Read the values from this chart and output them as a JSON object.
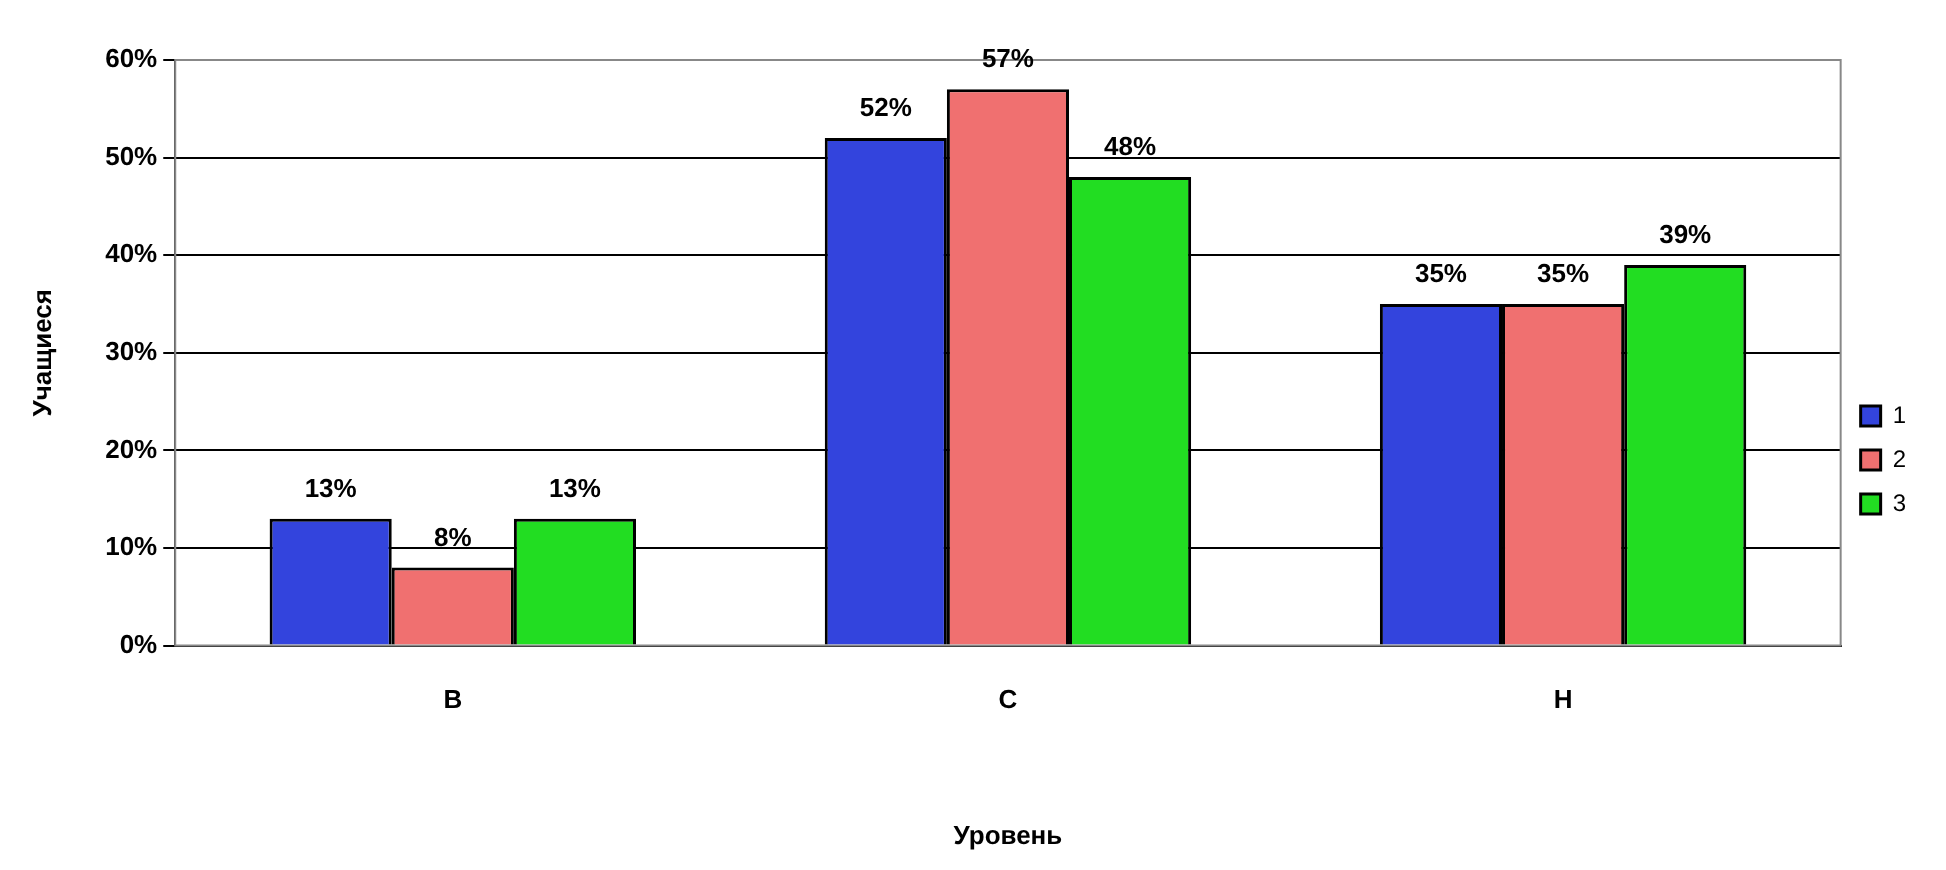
{
  "chart_data": {
    "type": "bar",
    "xlabel": "Уровень",
    "ylabel": "Учащиеся",
    "categories": [
      "В",
      "С",
      "Н"
    ],
    "series": [
      {
        "name": "1",
        "color": "#3344dd",
        "values": [
          13,
          52,
          35
        ],
        "value_labels": [
          "13%",
          "52%",
          "35%"
        ]
      },
      {
        "name": "2",
        "color": "#f07070",
        "values": [
          8,
          57,
          35
        ],
        "value_labels": [
          "8%",
          "57%",
          "35%"
        ]
      },
      {
        "name": "3",
        "color": "#22dd22",
        "values": [
          13,
          48,
          39
        ],
        "value_labels": [
          "13%",
          "48%",
          "39%"
        ]
      }
    ],
    "ylim": [
      0,
      60
    ],
    "yticks": [
      {
        "value": 0,
        "label": "0%"
      },
      {
        "value": 10,
        "label": "10%"
      },
      {
        "value": 20,
        "label": "20%"
      },
      {
        "value": 30,
        "label": "30%"
      },
      {
        "value": 40,
        "label": "40%"
      },
      {
        "value": 50,
        "label": "50%"
      },
      {
        "value": 60,
        "label": "60%"
      }
    ],
    "grid": "y",
    "legend": "right"
  }
}
